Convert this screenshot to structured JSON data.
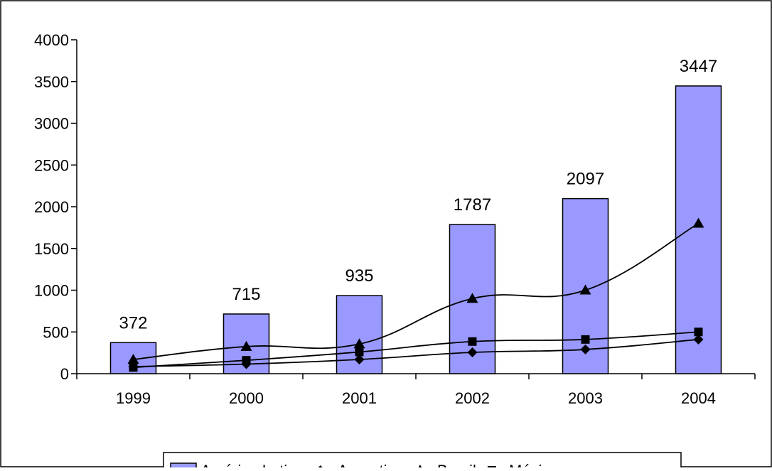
{
  "chart_data": {
    "type": "bar",
    "categories": [
      "1999",
      "2000",
      "2001",
      "2002",
      "2003",
      "2004"
    ],
    "series": [
      {
        "name": "América Latina",
        "type": "bar",
        "values": [
          372,
          715,
          935,
          1787,
          2097,
          3447
        ],
        "color": "#9999FF",
        "show_labels": true
      },
      {
        "name": "Argentina",
        "type": "line",
        "marker": "diamond",
        "values": [
          85,
          115,
          170,
          255,
          290,
          410
        ],
        "color": "#000000"
      },
      {
        "name": "Brasil",
        "type": "line",
        "marker": "triangle",
        "values": [
          170,
          325,
          355,
          900,
          1000,
          1800
        ],
        "color": "#000000"
      },
      {
        "name": "México",
        "type": "line",
        "marker": "square",
        "values": [
          75,
          160,
          260,
          385,
          410,
          500
        ],
        "color": "#000000"
      }
    ],
    "yticks": [
      "0",
      "500",
      "1000",
      "1500",
      "2000",
      "2500",
      "3000",
      "3500",
      "4000"
    ],
    "ylim": [
      0,
      4000
    ],
    "grid": false,
    "legend": "bottom",
    "title": "",
    "xlabel": "",
    "ylabel": ""
  }
}
